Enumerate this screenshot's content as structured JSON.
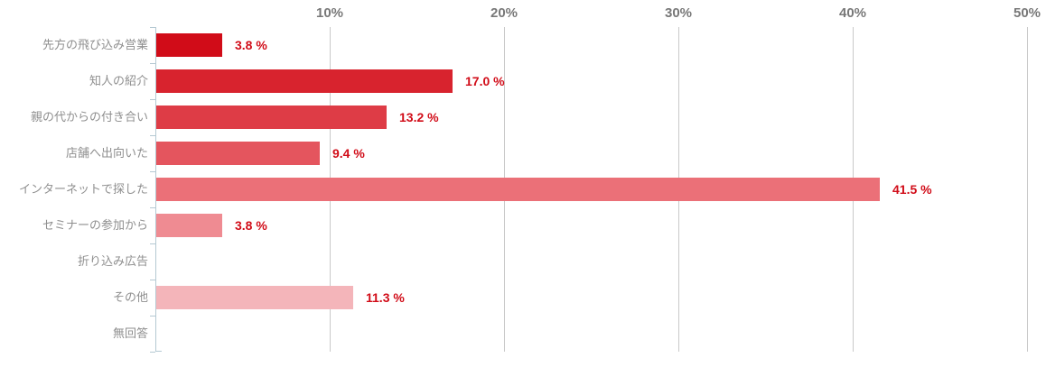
{
  "chart_data": {
    "type": "bar",
    "orientation": "horizontal",
    "title": "",
    "categories": [
      "先方の飛び込み営業",
      "知人の紹介",
      "親の代からの付き合い",
      "店舗へ出向いた",
      "インターネットで探した",
      "セミナーの参加から",
      "折り込み広告",
      "その他",
      "無回答"
    ],
    "values": [
      3.8,
      17.0,
      13.2,
      9.4,
      41.5,
      3.8,
      0,
      11.3,
      0
    ],
    "value_labels": [
      "3.8 %",
      "17.0 %",
      "13.2 %",
      "9.4 %",
      "41.5 %",
      "3.8 %",
      "",
      "11.3 %",
      ""
    ],
    "bar_colors": [
      "#d10c18",
      "#d8232e",
      "#de3c46",
      "#e4555e",
      "#eb7078",
      "#ef8b92",
      "",
      "#f4b5ba",
      ""
    ],
    "xlabel": "",
    "ylabel": "",
    "xlim": [
      0,
      50
    ],
    "x_ticks": [
      {
        "label": "10%",
        "value": 10
      },
      {
        "label": "20%",
        "value": 20
      },
      {
        "label": "30%",
        "value": 30
      },
      {
        "label": "40%",
        "value": 40
      },
      {
        "label": "50%",
        "value": 50
      }
    ],
    "grid": true,
    "legend": null,
    "colors": {
      "value_label": "#d10c18",
      "category_label": "#8f8f8f",
      "axis_tick_label": "#787878",
      "gridline": "#c9c9c9",
      "axis_line": "#b5c9d3",
      "background": "#ffffff"
    }
  }
}
